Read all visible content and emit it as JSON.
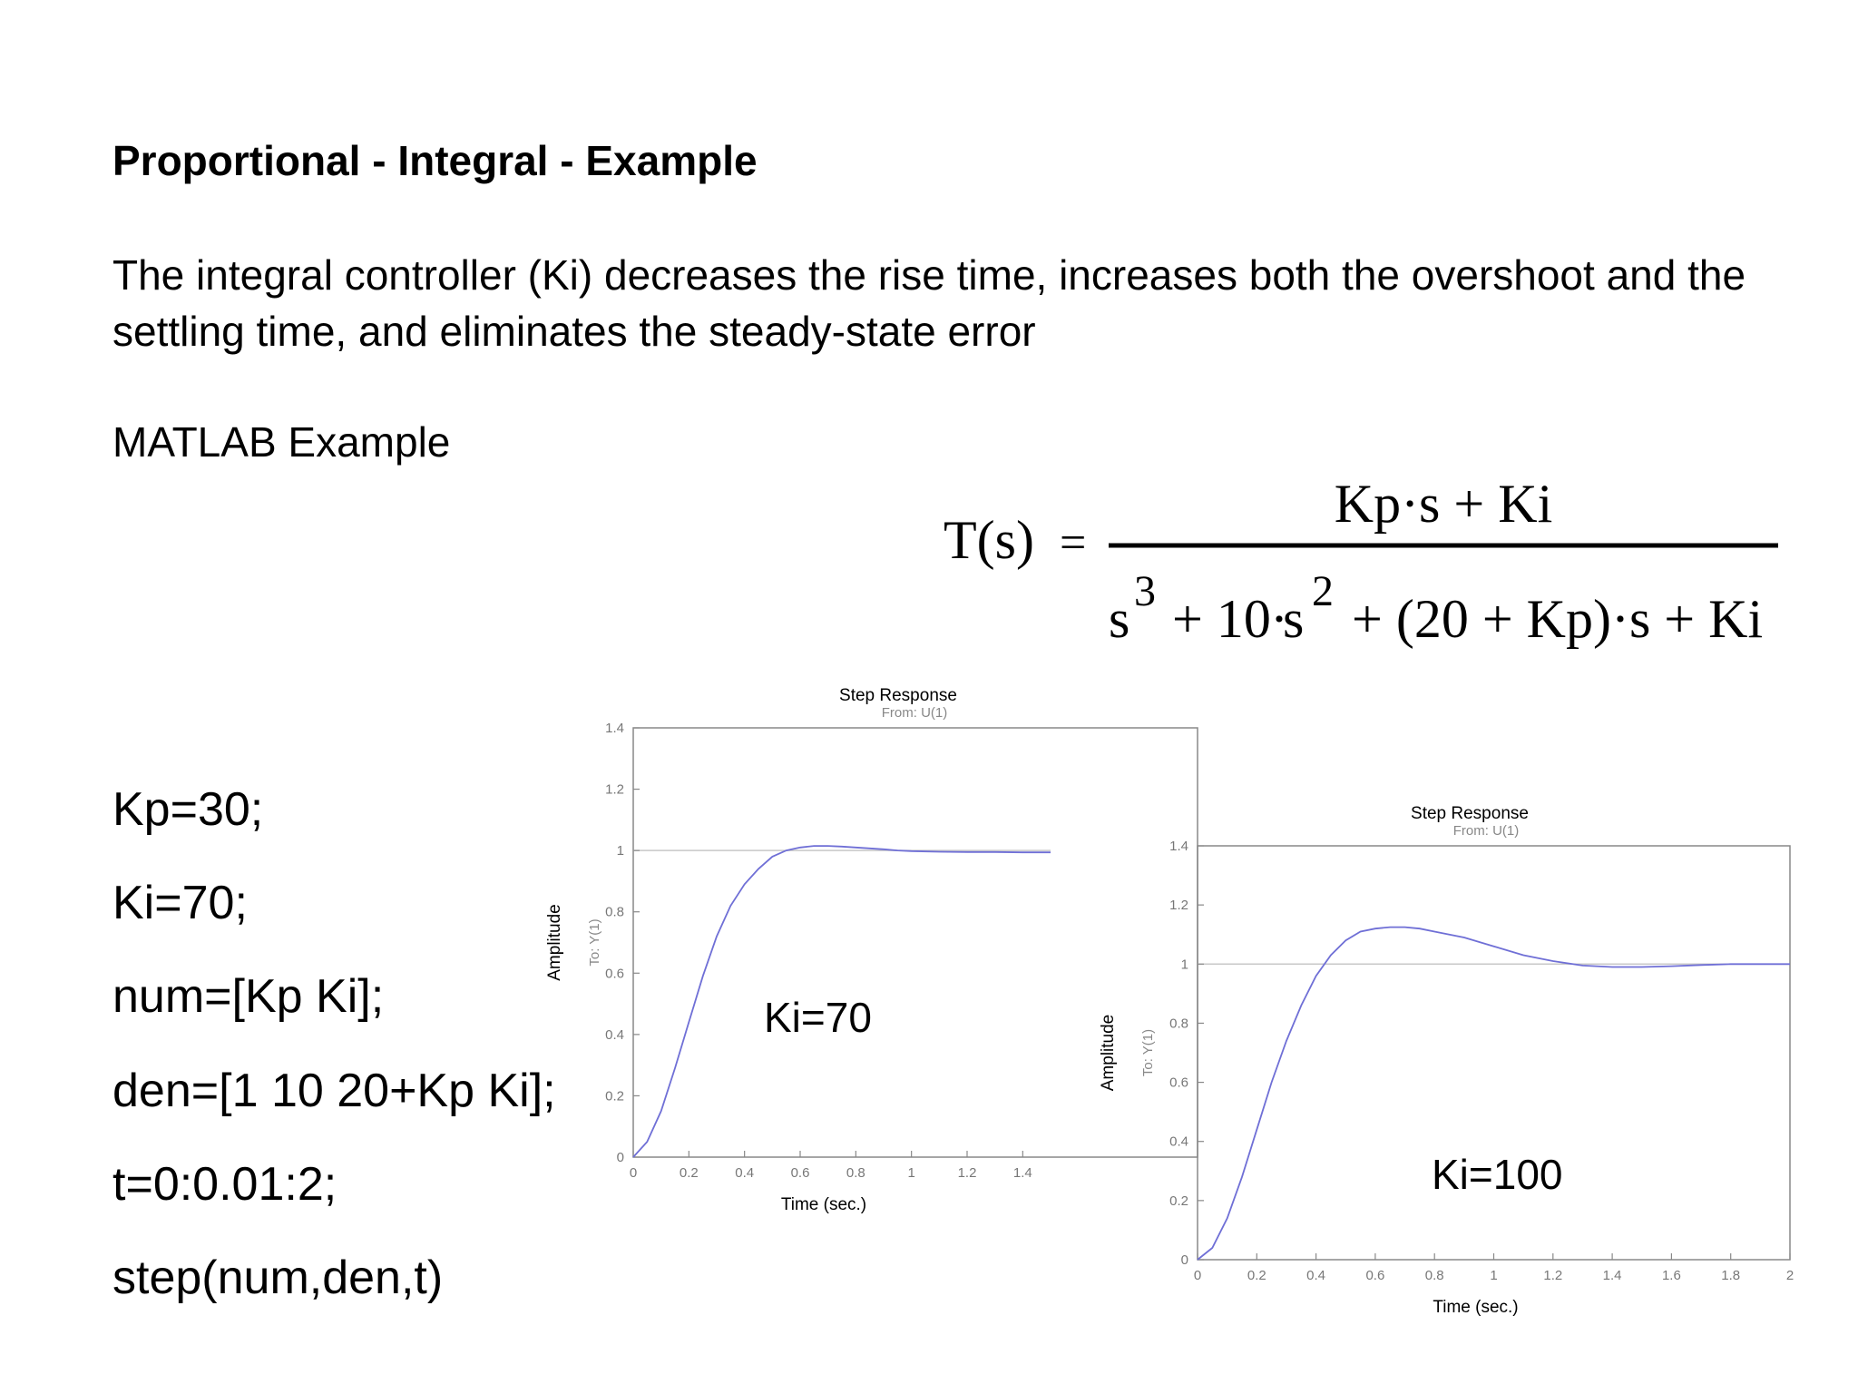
{
  "slide": {
    "title": "Proportional - Integral - Example",
    "intro": "The integral controller (Ki) decreases the rise time, increases both the overshoot and the settling time, and eliminates the steady-state error",
    "matlab_heading": "MATLAB Example",
    "code": [
      "Kp=30;",
      "Ki=70;",
      "num=[Kp Ki];",
      "den=[1 10 20+Kp Ki];",
      "t=0:0.01:2;",
      "step(num,den,t)"
    ]
  },
  "formula": {
    "lhs": "T(s)",
    "equals": "=",
    "numerator": "Kp·s + Ki",
    "den_s": "s",
    "den_exp3": "3",
    "den_plus1": "+ 10",
    "den_dot": "·",
    "den_s2": "s",
    "den_exp2": "2",
    "den_rest": "+ (20 + Kp)·s + Ki"
  },
  "chart_data": [
    {
      "type": "line",
      "title": "Step Response",
      "subtitle": "From: U(1)",
      "xlabel": "Time (sec.)",
      "ylabel": "Amplitude",
      "ylabel2": "To: Y(1)",
      "annotation": "Ki=70",
      "xlim": [
        0,
        1.5
      ],
      "ylim": [
        0,
        1.4
      ],
      "xticks": [
        "0",
        "0.2",
        "0.4",
        "0.6",
        "0.8",
        "1",
        "1.2",
        "1.4"
      ],
      "yticks": [
        "0",
        "0.2",
        "0.4",
        "0.6",
        "0.8",
        "1",
        "1.2",
        "1.4"
      ],
      "reference_line": 1,
      "series": [
        {
          "x": [
            0,
            0.05,
            0.1,
            0.15,
            0.2,
            0.25,
            0.3,
            0.35,
            0.4,
            0.45,
            0.5,
            0.55,
            0.6,
            0.65,
            0.7,
            0.75,
            0.8,
            0.85,
            0.9,
            0.95,
            1.0,
            1.1,
            1.2,
            1.3,
            1.4,
            1.5
          ],
          "y": [
            0,
            0.05,
            0.15,
            0.29,
            0.44,
            0.59,
            0.72,
            0.82,
            0.89,
            0.94,
            0.98,
            1.0,
            1.01,
            1.015,
            1.015,
            1.013,
            1.01,
            1.007,
            1.004,
            1.0,
            0.998,
            0.996,
            0.995,
            0.995,
            0.994,
            0.994
          ]
        }
      ]
    },
    {
      "type": "line",
      "title": "Step Response",
      "subtitle": "From: U(1)",
      "xlabel": "Time (sec.)",
      "ylabel": "Amplitude",
      "ylabel2": "To: Y(1)",
      "annotation": "Ki=100",
      "xlim": [
        0,
        2
      ],
      "ylim": [
        0,
        1.4
      ],
      "xticks": [
        "0",
        "0.2",
        "0.4",
        "0.6",
        "0.8",
        "1",
        "1.2",
        "1.4",
        "1.6",
        "1.8",
        "2"
      ],
      "yticks": [
        "0",
        "0.2",
        "0.4",
        "0.6",
        "0.8",
        "1",
        "1.2",
        "1.4"
      ],
      "reference_line": 1,
      "series": [
        {
          "x": [
            0,
            0.05,
            0.1,
            0.15,
            0.2,
            0.25,
            0.3,
            0.35,
            0.4,
            0.45,
            0.5,
            0.55,
            0.6,
            0.65,
            0.7,
            0.75,
            0.8,
            0.85,
            0.9,
            1.0,
            1.1,
            1.2,
            1.3,
            1.4,
            1.5,
            1.6,
            1.7,
            1.8,
            1.9,
            2.0
          ],
          "y": [
            0,
            0.04,
            0.14,
            0.28,
            0.44,
            0.6,
            0.74,
            0.86,
            0.96,
            1.03,
            1.08,
            1.11,
            1.12,
            1.125,
            1.125,
            1.12,
            1.11,
            1.1,
            1.09,
            1.06,
            1.03,
            1.01,
            0.995,
            0.99,
            0.99,
            0.993,
            0.997,
            1.0,
            1.0,
            1.0
          ]
        }
      ]
    }
  ]
}
